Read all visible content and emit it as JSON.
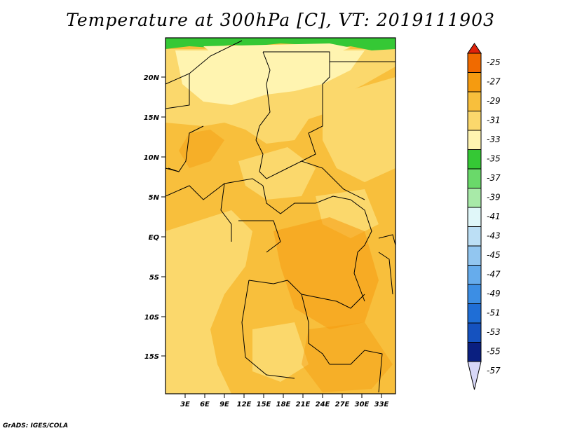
{
  "title": "Temperature at 300hPa [C], VT: 2019111903",
  "footer": "GrADS: IGES/COLA",
  "map": {
    "lon_ticks": [
      "3E",
      "6E",
      "9E",
      "12E",
      "15E",
      "18E",
      "21E",
      "24E",
      "27E",
      "30E",
      "33E"
    ],
    "lat_ticks": [
      "20N",
      "15N",
      "10N",
      "5N",
      "EQ",
      "5S",
      "10S",
      "15S"
    ]
  },
  "colorbar": {
    "labels": [
      "-25",
      "-27",
      "-29",
      "-31",
      "-33",
      "-35",
      "-37",
      "-39",
      "-41",
      "-43",
      "-45",
      "-47",
      "-49",
      "-51",
      "-53",
      "-55",
      "-57"
    ],
    "colors": [
      "#e0220a",
      "#f06a00",
      "#f59b10",
      "#f8bf3c",
      "#fbd86c",
      "#fff4b0",
      "#35c835",
      "#6ad96a",
      "#a8eaa8",
      "#e0f7f9",
      "#bcdff5",
      "#92c6f0",
      "#66acec",
      "#3c8ee4",
      "#1f6ed6",
      "#1552bf",
      "#0a1f80",
      "#d8d8f8"
    ]
  },
  "colors": {
    "cold": "#35c835",
    "t33": "#fff4b0",
    "t31": "#fbd86c",
    "t29": "#f8bf3c",
    "t27": "#f59b10"
  }
}
